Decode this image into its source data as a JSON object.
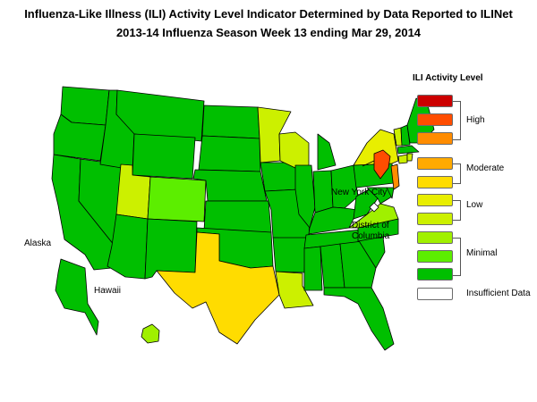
{
  "title_line1": "Influenza-Like Illness (ILI) Activity Level Indicator Determined by Data Reported to ILINet",
  "title_line2": "2013-14  Influenza Season Week  13 ending Mar 29, 2014",
  "map_labels": {
    "new_york_city": "New York City",
    "dc_line1": "District of",
    "dc_line2": "Columbia",
    "alaska": "Alaska",
    "hawaii": "Hawaii"
  },
  "legend": {
    "title": "ILI Activity Level",
    "levels": [
      {
        "level": 10,
        "color": "#cc0000"
      },
      {
        "level": 9,
        "color": "#ff4d00"
      },
      {
        "level": 8,
        "color": "#ff8c00"
      },
      {
        "level": 7,
        "color": "#ffaa00"
      },
      {
        "level": 6,
        "color": "#ffdc00"
      },
      {
        "level": 5,
        "color": "#e8ee00"
      },
      {
        "level": 4,
        "color": "#ccf000"
      },
      {
        "level": 3,
        "color": "#a0f000"
      },
      {
        "level": 2,
        "color": "#5cee00"
      },
      {
        "level": 1,
        "color": "#00bf00"
      },
      {
        "level": 0,
        "color": "#ffffff"
      }
    ],
    "groups": {
      "high": "High",
      "moderate": "Moderate",
      "low": "Low",
      "minimal": "Minimal",
      "insufficient": "Insufficient Data"
    }
  },
  "state_levels": {
    "WA": 1,
    "OR": 1,
    "CA": 1,
    "NV": 1,
    "ID": 1,
    "MT": 1,
    "WY": 1,
    "UT": 4,
    "AZ": 1,
    "CO": 2,
    "NM": 1,
    "ND": 1,
    "SD": 1,
    "NE": 1,
    "KS": 1,
    "OK": 1,
    "TX": 6,
    "MN": 4,
    "IA": 1,
    "MO": 1,
    "AR": 1,
    "LA": 4,
    "WI": 4,
    "IL": 1,
    "MI": 1,
    "IN": 1,
    "OH": 1,
    "KY": 1,
    "TN": 1,
    "MS": 1,
    "AL": 1,
    "GA": 1,
    "FL": 1,
    "SC": 1,
    "NC": 1,
    "VA": 3,
    "WV": 1,
    "MD": 1,
    "DE": 1,
    "PA": 1,
    "NY": 5,
    "NJ": 8,
    "CT": 4,
    "RI": 4,
    "MA": 1,
    "VT": 4,
    "NH": 1,
    "ME": 1,
    "AK": 1,
    "HI": 3,
    "NYC": 9,
    "DC": 0
  }
}
